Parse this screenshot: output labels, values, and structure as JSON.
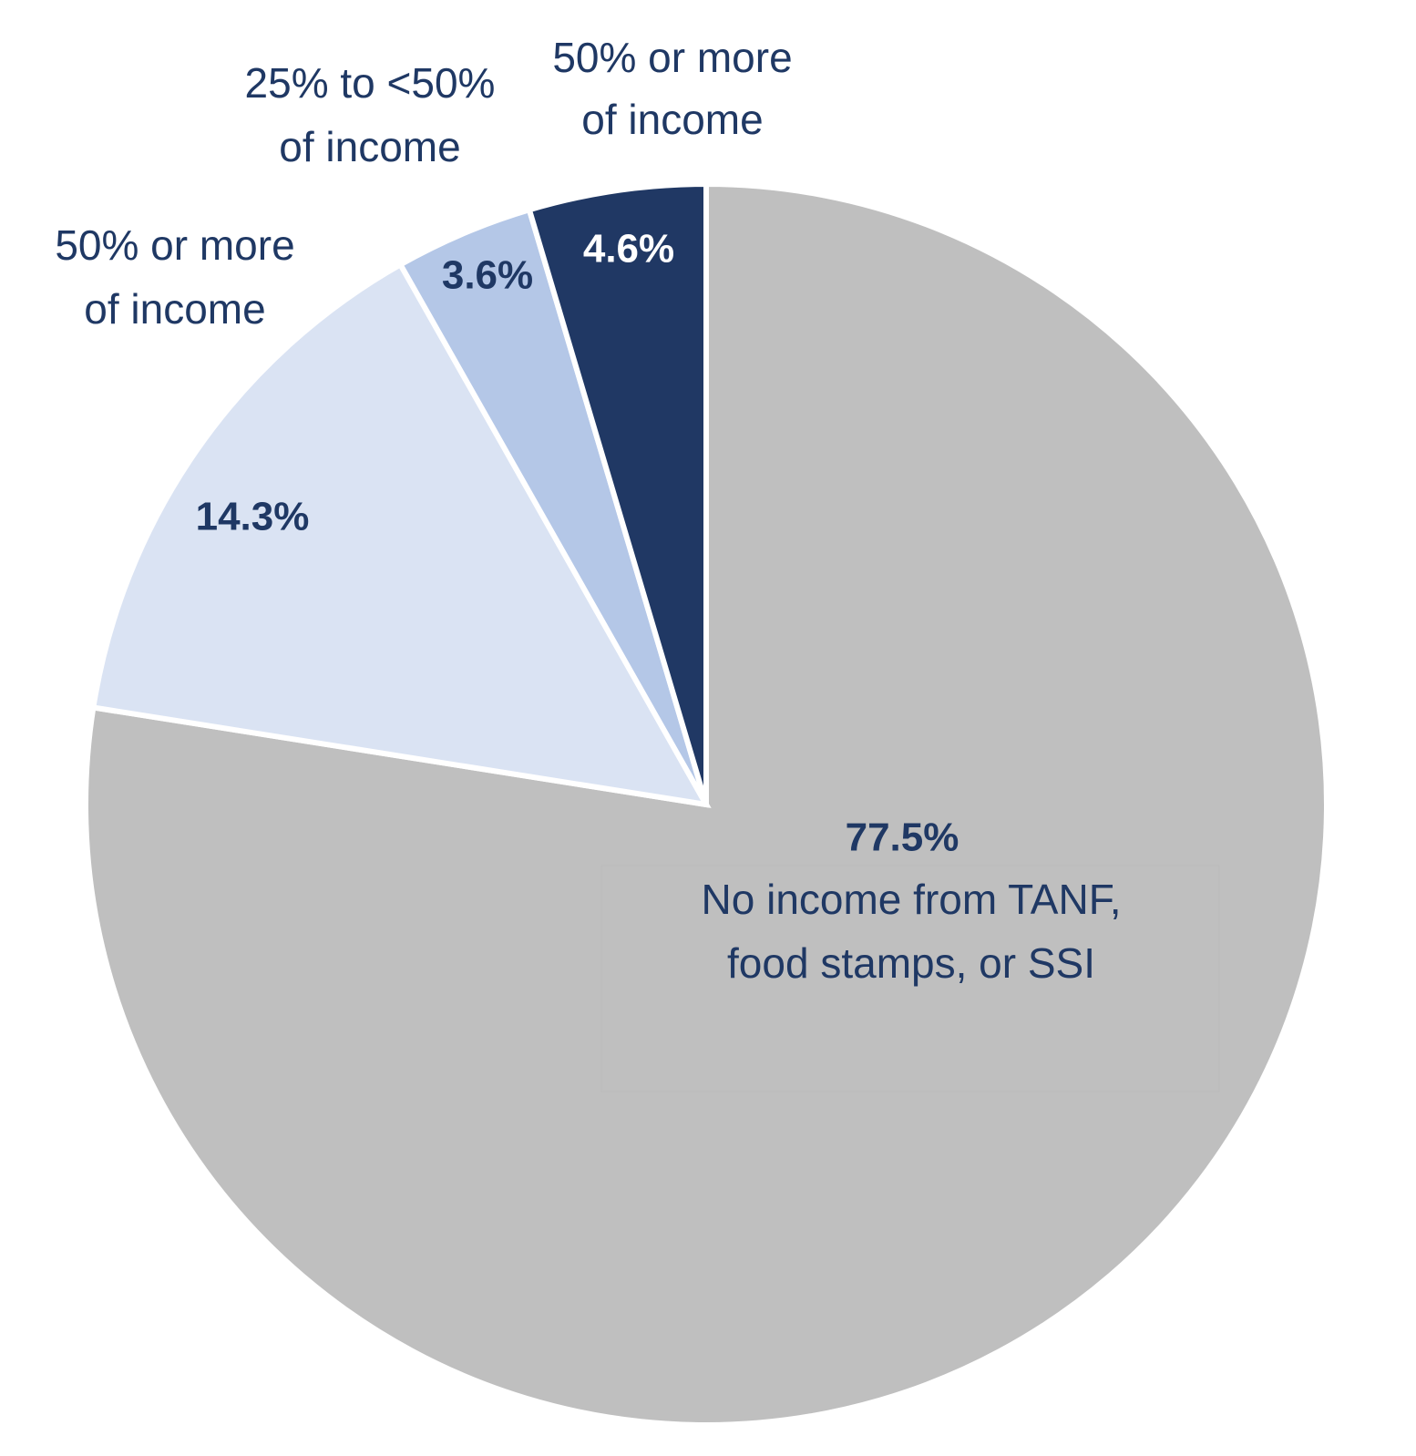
{
  "chart_data": {
    "type": "pie",
    "start_angle_deg": 0,
    "direction": "clockwise",
    "slices": [
      {
        "value": 77.5,
        "value_label": "77.5%",
        "category_lines": [
          "No income from TANF,",
          "food stamps, or SSI"
        ],
        "color": "#bfbfbf",
        "value_label_color": "#1f3864"
      },
      {
        "value": 14.3,
        "value_label": "14.3%",
        "category_lines": [
          "50% or more",
          "of income"
        ],
        "color": "#dae3f3",
        "value_label_color": "#1f3864"
      },
      {
        "value": 3.6,
        "value_label": "3.6%",
        "category_lines": [
          "25% to <50%",
          "of income"
        ],
        "color": "#b4c7e7",
        "value_label_color": "#1f3864"
      },
      {
        "value": 4.6,
        "value_label": "4.6%",
        "category_lines": [
          "50% or more",
          "of income"
        ],
        "color": "#203864",
        "value_label_color": "#ffffff"
      }
    ]
  }
}
